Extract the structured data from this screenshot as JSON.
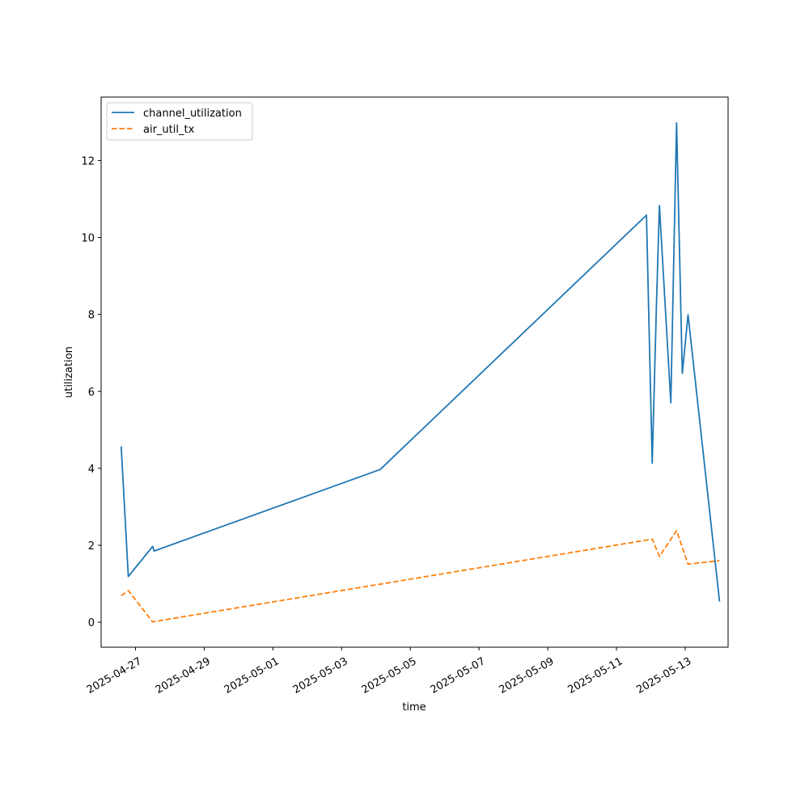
{
  "chart_data": {
    "type": "line",
    "title": "",
    "xlabel": "time",
    "ylabel": "utilization",
    "x_type": "date",
    "xlim": [
      "2025-04-26T00:00",
      "2025-05-14T06:00"
    ],
    "ylim": [
      -0.65,
      13.65
    ],
    "x_ticks": [
      "2025-04-27",
      "2025-04-29",
      "2025-05-01",
      "2025-05-03",
      "2025-05-05",
      "2025-05-07",
      "2025-05-09",
      "2025-05-11",
      "2025-05-13"
    ],
    "y_ticks": [
      0,
      2,
      4,
      6,
      8,
      10,
      12
    ],
    "grid": false,
    "legend_position": "upper-left",
    "series": [
      {
        "name": "channel_utilization",
        "color": "#1f77b4",
        "style": "solid",
        "points": [
          {
            "x": "2025-04-26T14:00",
            "y": 4.57
          },
          {
            "x": "2025-04-26T19:00",
            "y": 1.19
          },
          {
            "x": "2025-04-27T12:00",
            "y": 1.97
          },
          {
            "x": "2025-04-27T13:00",
            "y": 1.85
          },
          {
            "x": "2025-05-04T03:00",
            "y": 3.97
          },
          {
            "x": "2025-05-11T21:00",
            "y": 10.58
          },
          {
            "x": "2025-05-12T01:00",
            "y": 4.13
          },
          {
            "x": "2025-05-12T04:00",
            "y": 8.3
          },
          {
            "x": "2025-05-12T06:00",
            "y": 10.83
          },
          {
            "x": "2025-05-12T14:00",
            "y": 5.7
          },
          {
            "x": "2025-05-12T18:00",
            "y": 12.98
          },
          {
            "x": "2025-05-12T22:00",
            "y": 6.47
          },
          {
            "x": "2025-05-13T02:00",
            "y": 7.99
          },
          {
            "x": "2025-05-14T00:00",
            "y": 0.54
          }
        ]
      },
      {
        "name": "air_util_tx",
        "color": "#ff7f0e",
        "style": "dashed",
        "points": [
          {
            "x": "2025-04-26T14:00",
            "y": 0.69
          },
          {
            "x": "2025-04-26T19:00",
            "y": 0.82
          },
          {
            "x": "2025-04-27T12:00",
            "y": 0.01
          },
          {
            "x": "2025-05-12T01:00",
            "y": 2.16
          },
          {
            "x": "2025-05-12T06:00",
            "y": 1.71
          },
          {
            "x": "2025-05-12T18:00",
            "y": 2.38
          },
          {
            "x": "2025-05-13T02:00",
            "y": 1.51
          },
          {
            "x": "2025-05-14T00:00",
            "y": 1.6
          }
        ]
      }
    ]
  }
}
